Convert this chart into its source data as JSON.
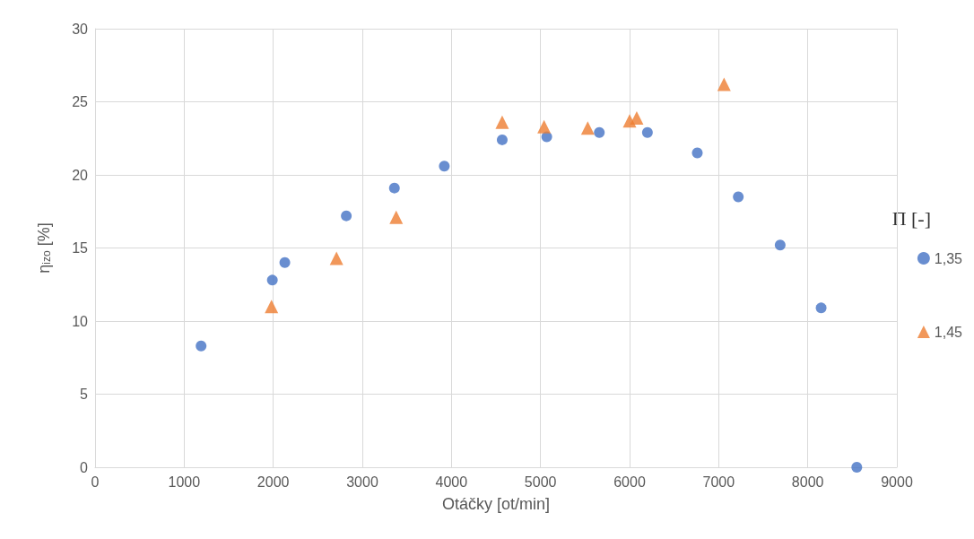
{
  "chart_data": {
    "type": "scatter",
    "xlabel": "Otáčky [ot/min]",
    "ylabel": "η$_{izo}$ [%]",
    "legend_title": "Π [-]",
    "legend": "right",
    "grid": true,
    "xlim": [
      0,
      9000
    ],
    "xticks": [
      0,
      1000,
      2000,
      3000,
      4000,
      5000,
      6000,
      7000,
      8000,
      9000
    ],
    "ylim": [
      0,
      30
    ],
    "yticks": [
      0,
      5,
      10,
      15,
      20,
      25,
      30
    ],
    "series": [
      {
        "name": "1,35",
        "color": "#4472c4",
        "marker": "circle",
        "x": [
          1190,
          1990,
          2130,
          2820,
          3360,
          3920,
          4570,
          5070,
          5660,
          6200,
          6760,
          7220,
          7690,
          8150,
          8550
        ],
        "values": [
          8.3,
          12.8,
          14.0,
          17.2,
          19.1,
          20.6,
          22.4,
          22.6,
          22.9,
          22.9,
          21.5,
          18.5,
          15.2,
          10.9,
          0
        ]
      },
      {
        "name": "1,45",
        "color": "#ed7d31",
        "marker": "triangle",
        "x": [
          1980,
          2710,
          3380,
          4570,
          5040,
          5530,
          6000,
          6080,
          7060
        ],
        "values": [
          11.0,
          14.3,
          17.1,
          23.6,
          23.3,
          23.2,
          23.7,
          23.9,
          26.2
        ]
      }
    ]
  }
}
